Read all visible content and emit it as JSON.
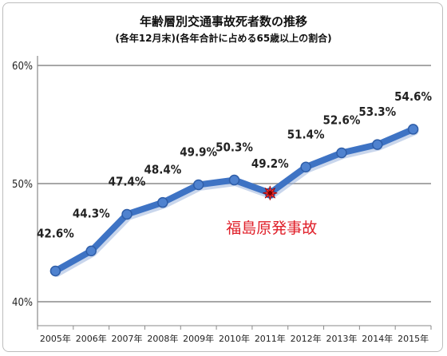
{
  "chart_data": {
    "type": "line",
    "title": "年齢層別交通事故死者数の推移",
    "subtitle": "(各年12月末)(各年合計に占める65歳以上の割合)",
    "categories": [
      "2005年",
      "2006年",
      "2007年",
      "2008年",
      "2009年",
      "2010年",
      "2011年",
      "2012年",
      "2013年",
      "2014年",
      "2015年"
    ],
    "values": [
      42.6,
      44.3,
      47.4,
      48.4,
      49.9,
      50.3,
      49.2,
      51.4,
      52.6,
      53.3,
      54.6
    ],
    "data_labels": [
      "42.6%",
      "44.3%",
      "47.4%",
      "48.4%",
      "49.9%",
      "50.3%",
      "49.2%",
      "51.4%",
      "52.6%",
      "53.3%",
      "54.6%"
    ],
    "yticks": [
      40,
      50,
      60
    ],
    "ytick_labels": [
      "40%",
      "50%",
      "60%"
    ],
    "ylim": [
      40,
      60
    ],
    "xlabel": "",
    "ylabel": "",
    "grid": true,
    "legend": "none",
    "annotation": {
      "text": "福島原発事故",
      "category": "2011年",
      "color": "#e0202a"
    },
    "line_color": "#3e73c4"
  }
}
